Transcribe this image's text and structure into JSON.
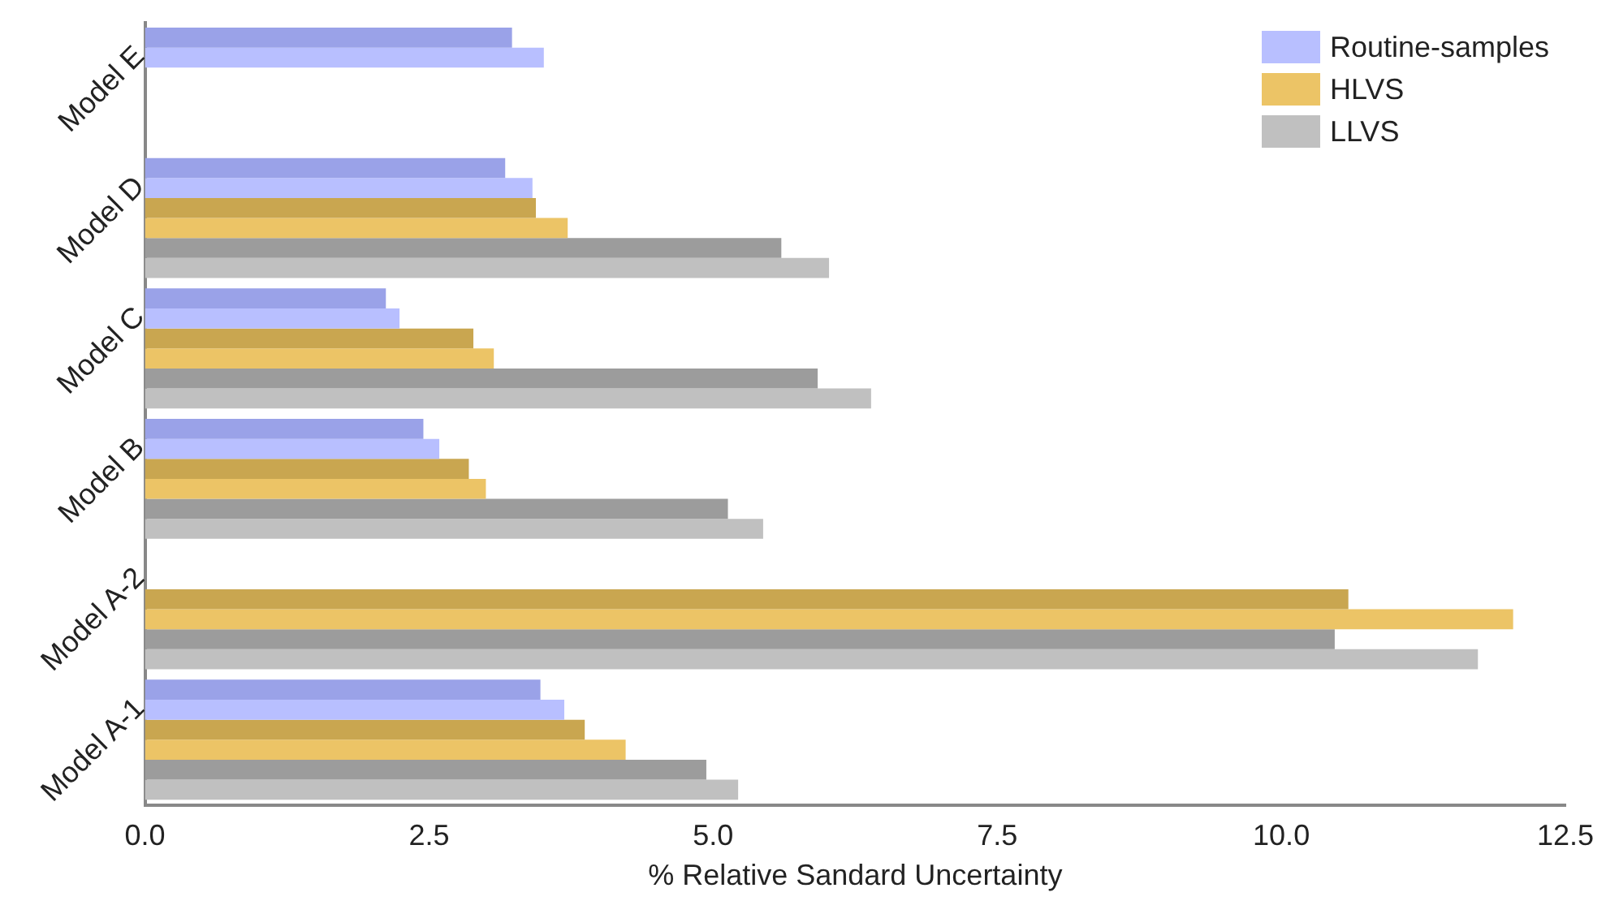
{
  "chart_data": {
    "type": "bar",
    "orientation": "horizontal",
    "xlabel": "% Relative Sandard Uncertainty",
    "categories": [
      "Model E",
      "Model D",
      "Model C",
      "Model B",
      "Model A-2",
      "Model A-1"
    ],
    "series": [
      {
        "color": "#9aa2e8",
        "values": [
          3.23,
          3.17,
          2.12,
          2.45,
          null,
          3.48
        ]
      },
      {
        "name": "Routine-samples",
        "color": "#b8bfff",
        "values": [
          3.51,
          3.41,
          2.24,
          2.59,
          null,
          3.69
        ]
      },
      {
        "color": "#c9a650",
        "values": [
          null,
          3.44,
          2.89,
          2.85,
          10.59,
          3.87
        ]
      },
      {
        "name": "HLVS",
        "color": "#ecc466",
        "values": [
          null,
          3.72,
          3.07,
          3.0,
          12.04,
          4.23
        ]
      },
      {
        "color": "#9c9c9c",
        "values": [
          null,
          5.6,
          5.92,
          5.13,
          10.47,
          4.94
        ]
      },
      {
        "name": "LLVS",
        "color": "#c0c0c0",
        "values": [
          null,
          6.02,
          6.39,
          5.44,
          11.73,
          5.22
        ]
      }
    ],
    "xlim": [
      0,
      12.5
    ],
    "xticks": [
      {
        "value": 0,
        "label": "0.0"
      },
      {
        "value": 2.5,
        "label": "2.5"
      },
      {
        "value": 5,
        "label": "5.0"
      },
      {
        "value": 7.5,
        "label": "7.5"
      },
      {
        "value": 10,
        "label": "10.0"
      },
      {
        "value": 12.5,
        "label": "12.5"
      }
    ],
    "grid": false,
    "legend": "top right"
  }
}
